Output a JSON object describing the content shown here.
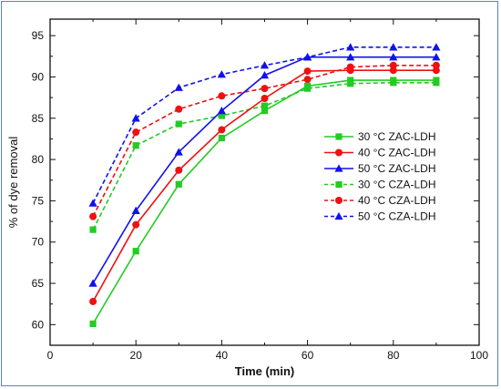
{
  "chart_data": {
    "type": "line",
    "xlabel": "Time (min)",
    "ylabel": "% of dye removal",
    "xlim": [
      0,
      100
    ],
    "ylim": [
      57.5,
      97
    ],
    "xticks": [
      0,
      20,
      40,
      60,
      80,
      100
    ],
    "yticks": [
      60,
      65,
      70,
      75,
      80,
      85,
      90,
      95
    ],
    "x": [
      10,
      20,
      30,
      40,
      50,
      60,
      70,
      80,
      90
    ],
    "legend_position": "right",
    "grid": false,
    "series": [
      {
        "name": "30 °C ZAC-LDH",
        "color": "#22cc22",
        "dash": "solid",
        "marker": "square",
        "values": [
          60.1,
          68.9,
          77.0,
          82.6,
          85.9,
          88.9,
          89.6,
          89.6,
          89.6
        ]
      },
      {
        "name": "40 °C ZAC-LDH",
        "color": "#ee1111",
        "dash": "solid",
        "marker": "circle",
        "values": [
          62.8,
          72.1,
          78.7,
          83.6,
          87.4,
          90.7,
          90.8,
          90.8,
          90.8
        ]
      },
      {
        "name": "50 °C ZAC-LDH",
        "color": "#1111ee",
        "dash": "solid",
        "marker": "triangle",
        "values": [
          65.0,
          73.8,
          80.9,
          85.9,
          90.2,
          92.4,
          92.4,
          92.4,
          92.4
        ]
      },
      {
        "name": "30 °C CZA-LDH",
        "color": "#22cc22",
        "dash": "dashed",
        "marker": "square",
        "values": [
          71.5,
          81.7,
          84.3,
          85.3,
          86.5,
          88.6,
          89.2,
          89.3,
          89.3
        ]
      },
      {
        "name": "40 °C CZA-LDH",
        "color": "#ee1111",
        "dash": "dashed",
        "marker": "circle",
        "values": [
          73.1,
          83.3,
          86.1,
          87.7,
          88.6,
          89.7,
          91.2,
          91.4,
          91.4
        ]
      },
      {
        "name": "50 °C CZA-LDH",
        "color": "#1111ee",
        "dash": "dashed",
        "marker": "triangle",
        "values": [
          74.7,
          85.0,
          88.7,
          90.3,
          91.4,
          92.4,
          93.6,
          93.6,
          93.6
        ]
      }
    ]
  }
}
